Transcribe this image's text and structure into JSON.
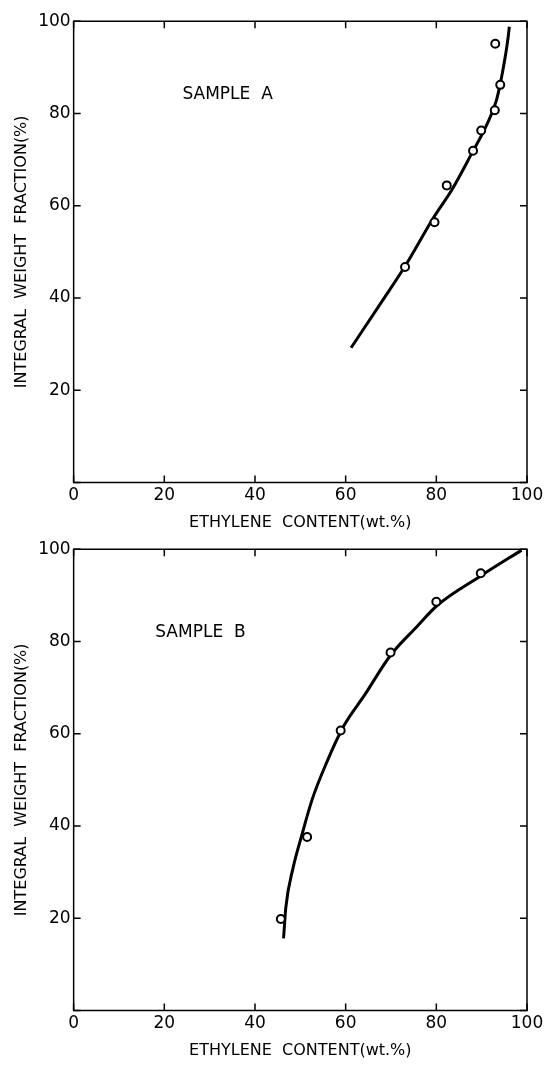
{
  "chart_data": [
    {
      "type": "scatter",
      "xlabel": "ETHYLENE  CONTENT(wt.%)",
      "ylabel": "INTEGRAL  WEIGHT  FRACTION(%)",
      "annotations": [
        "SAMPLE  A"
      ],
      "xlim": [
        0,
        100
      ],
      "ylim": [
        0,
        100
      ],
      "xticks": [
        0,
        20,
        40,
        60,
        80,
        100
      ],
      "yticks": [
        {
          "value": 0,
          "label": null
        },
        20,
        40,
        60,
        80,
        100
      ],
      "marker": "circle",
      "series": [
        {
          "color": "#000000",
          "x": [
            73.1,
            79.6,
            82.3,
            88.1,
            89.9,
            92.9,
            94.1,
            93.0
          ],
          "values": [
            46.7,
            56.4,
            64.4,
            71.9,
            76.3,
            80.7,
            86.2,
            95.1
          ]
        },
        {
          "type": "line",
          "color": "#000000",
          "marker": "none",
          "line_style": "solid",
          "x": [
            61.2,
            67.9,
            73.3,
            79.5,
            83.4,
            87.9,
            91.0,
            93.3,
            94.8,
            95.8,
            96.1
          ],
          "values": [
            29.2,
            39.1,
            47.2,
            57.6,
            63.4,
            71.5,
            77.3,
            83.0,
            90.0,
            96.2,
            98.8
          ]
        }
      ]
    },
    {
      "type": "scatter",
      "xlabel": "ETHYLENE  CONTENT(wt.%)",
      "ylabel": "INTEGRAL  WEIGHT  FRACTION(%)",
      "annotations": [
        "SAMPLE  B"
      ],
      "xlim": [
        0,
        100
      ],
      "ylim": [
        0,
        100
      ],
      "xticks": [
        0,
        20,
        40,
        60,
        80,
        100
      ],
      "yticks": [
        {
          "value": 0,
          "label": null
        },
        20,
        40,
        60,
        80,
        100
      ],
      "marker": "circle",
      "series": [
        {
          "color": "#000000",
          "x": [
            45.7,
            51.5,
            58.9,
            69.9,
            80.0,
            89.8
          ],
          "values": [
            19.8,
            37.6,
            60.7,
            77.6,
            88.6,
            94.8
          ]
        },
        {
          "type": "line",
          "color": "#000000",
          "marker": "none",
          "line_style": "solid",
          "x": [
            46.3,
            46.8,
            48.4,
            50.3,
            52.6,
            55.7,
            59.6,
            64.2,
            69.9,
            75.7,
            80.3,
            89.6,
            98.8
          ],
          "values": [
            15.6,
            22.3,
            30.9,
            37.9,
            45.7,
            53.5,
            61.7,
            68.4,
            77.0,
            83.2,
            87.9,
            94.1,
            99.8
          ]
        }
      ]
    }
  ]
}
